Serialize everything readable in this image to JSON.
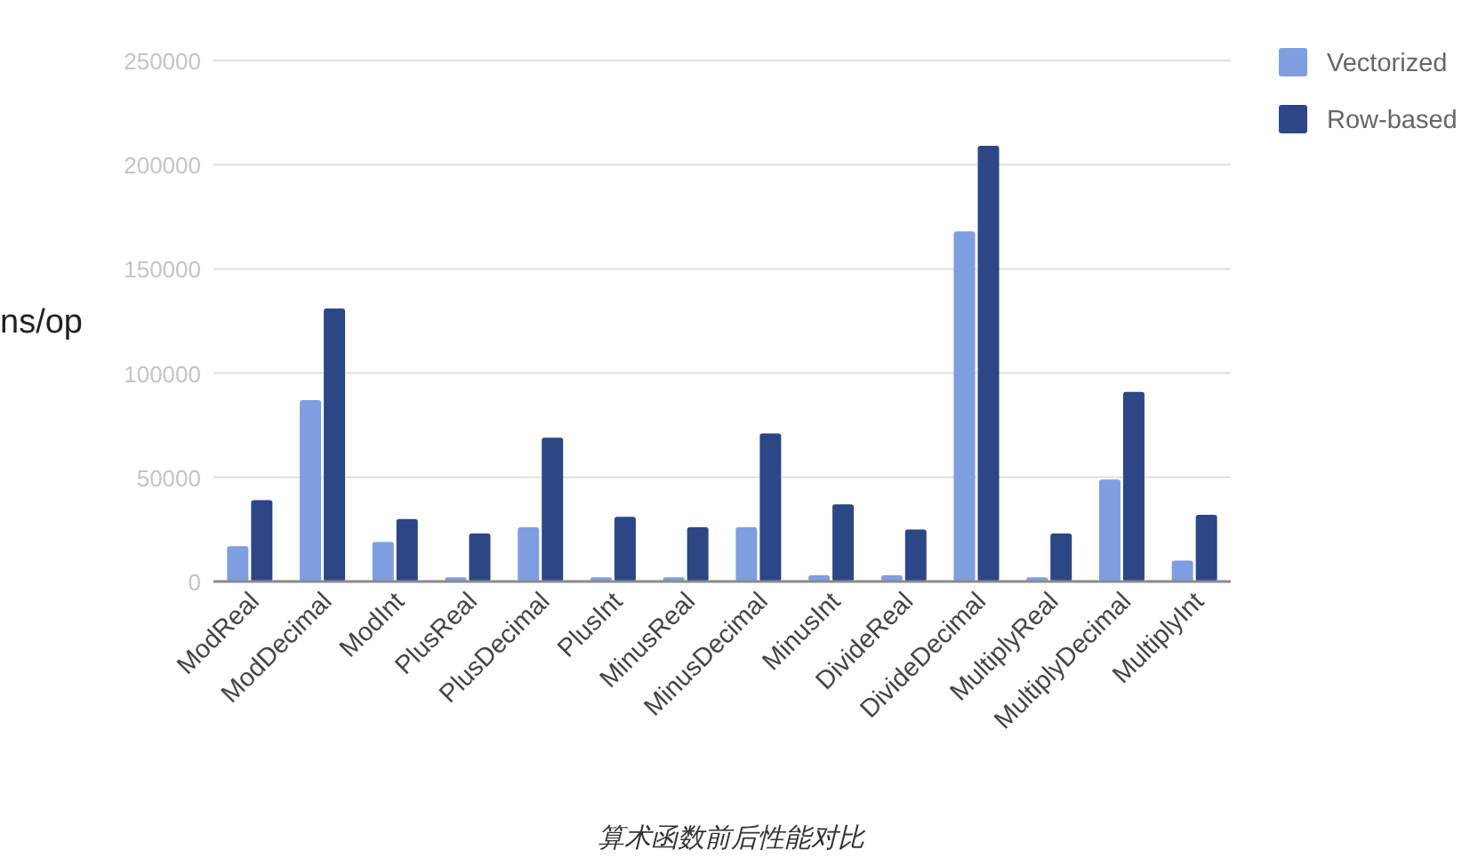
{
  "chart_data": {
    "type": "bar",
    "ylabel": "ns/op",
    "categories": [
      "ModReal",
      "ModDecimal",
      "ModInt",
      "PlusReal",
      "PlusDecimal",
      "PlusInt",
      "MinusReal",
      "MinusDecimal",
      "MinusInt",
      "DivideReal",
      "DivideDecimal",
      "MultiplyReal",
      "MultiplyDecimal",
      "MultiplyInt"
    ],
    "series": [
      {
        "name": "Vectorized",
        "color": "#7e9ee0",
        "values": [
          17000,
          87000,
          19000,
          2000,
          26000,
          2000,
          2000,
          26000,
          3000,
          3000,
          168000,
          2000,
          49000,
          10000
        ]
      },
      {
        "name": "Row-based",
        "color": "#2d4686",
        "values": [
          39000,
          131000,
          30000,
          23000,
          69000,
          31000,
          26000,
          71000,
          37000,
          25000,
          209000,
          23000,
          91000,
          32000
        ]
      }
    ],
    "ylim": [
      0,
      250000
    ],
    "yticks": [
      0,
      50000,
      100000,
      150000,
      200000,
      250000
    ],
    "grid": "y",
    "legend": "top right",
    "annotations": [
      "算术函数前后性能对比"
    ]
  }
}
